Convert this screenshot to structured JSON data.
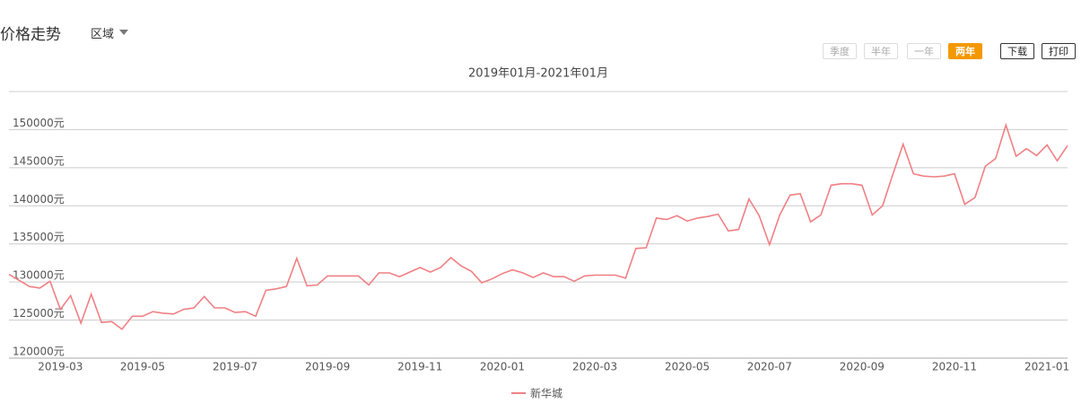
{
  "header": {
    "title": "价格走势",
    "region": "区域"
  },
  "periods": [
    "季度",
    "半年",
    "一年",
    "两年"
  ],
  "actions": [
    "下载",
    "打印"
  ],
  "chart_data": {
    "type": "line",
    "subtitle": "2019年01月-2021年01月",
    "categories": [
      null,
      null,
      null,
      null,
      null,
      "2019-03",
      null,
      null,
      null,
      null,
      null,
      null,
      null,
      "2019-05",
      null,
      null,
      null,
      null,
      null,
      null,
      null,
      null,
      "2019-07",
      null,
      null,
      null,
      null,
      null,
      null,
      null,
      null,
      "2019-09",
      null,
      null,
      null,
      null,
      null,
      null,
      null,
      null,
      "2019-11",
      null,
      null,
      null,
      null,
      null,
      null,
      null,
      "2020-01",
      null,
      null,
      null,
      null,
      null,
      null,
      null,
      null,
      "2020-03",
      null,
      null,
      null,
      null,
      null,
      null,
      null,
      null,
      "2020-05",
      null,
      null,
      null,
      null,
      null,
      null,
      null,
      "2020-07",
      null,
      null,
      null,
      null,
      null,
      null,
      null,
      null,
      "2020-09",
      null,
      null,
      null,
      null,
      null,
      null,
      null,
      null,
      "2020-11",
      null,
      null,
      null,
      null,
      null,
      null,
      null,
      null,
      "2021-01",
      null,
      null
    ],
    "series": [
      {
        "name": "新华城",
        "color": "#f08084",
        "values": [
          131000,
          130200,
          129400,
          129200,
          130100,
          126400,
          128200,
          124600,
          128400,
          124700,
          124800,
          123800,
          125500,
          125500,
          126100,
          125900,
          125800,
          126400,
          126600,
          128100,
          126600,
          126600,
          126000,
          126100,
          125500,
          128900,
          129100,
          129400,
          133100,
          129500,
          129600,
          130800,
          130800,
          130800,
          130800,
          129600,
          131200,
          131200,
          130700,
          131300,
          131900,
          131300,
          131900,
          133200,
          132100,
          131400,
          129900,
          130400,
          131100,
          131600,
          131200,
          130600,
          131200,
          130700,
          130700,
          130100,
          130800,
          130900,
          130900,
          130900,
          130500,
          134400,
          134500,
          138400,
          138200,
          138700,
          138000,
          138400,
          138600,
          138900,
          136700,
          136900,
          140900,
          138700,
          134900,
          138800,
          141400,
          141600,
          137900,
          138800,
          142700,
          142900,
          142900,
          142700,
          138800,
          140000,
          144100,
          148100,
          144200,
          143900,
          143800,
          143900,
          144200,
          140200,
          141100,
          145200,
          146200,
          150600,
          146500,
          147500,
          146600,
          148000,
          145900,
          147900
        ]
      }
    ],
    "ylim": [
      120000,
      155000
    ],
    "yticks": [
      {
        "value": 120000,
        "label": "120000元"
      },
      {
        "value": 125000,
        "label": "125000元"
      },
      {
        "value": 130000,
        "label": "130000元"
      },
      {
        "value": 135000,
        "label": "135000元"
      },
      {
        "value": 140000,
        "label": "140000元"
      },
      {
        "value": 145000,
        "label": "145000元"
      },
      {
        "value": 150000,
        "label": "150000元"
      }
    ],
    "grid": true
  }
}
